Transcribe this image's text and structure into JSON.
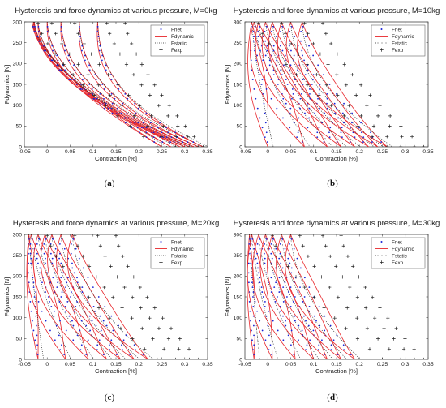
{
  "chart_data": [
    {
      "type": "line",
      "panel": "(a)",
      "panel_letter": "a",
      "title": "Hysteresis and force dynamics at various pressure, M=0kg",
      "xlabel": "Contraction [%]",
      "ylabel": "Fdynamics [N]",
      "xlim": [
        -0.05,
        0.35
      ],
      "ylim": [
        0,
        300
      ],
      "xticks": [
        "-0.05",
        "0",
        "0.05",
        "0.1",
        "0.15",
        "0.2",
        "0.25",
        "0.3",
        "0.35"
      ],
      "yticks": [
        "0",
        "50",
        "100",
        "150",
        "200",
        "250",
        "300"
      ],
      "legend_position": "top-right",
      "legend": [
        "Fnet",
        "Fdynamic",
        "Fstatic",
        "Fexp"
      ],
      "curves": [
        {
          "x0": -0.033,
          "x1": 0.25,
          "spread": 0.004,
          "shape": 0.35
        },
        {
          "x0": -0.03,
          "x1": 0.27,
          "spread": 0.004,
          "shape": 0.4
        },
        {
          "x0": -0.028,
          "x1": 0.29,
          "spread": 0.005,
          "shape": 0.5
        },
        {
          "x0": -0.02,
          "x1": 0.3,
          "spread": 0.005,
          "shape": 0.6
        },
        {
          "x0": 0.0,
          "x1": 0.31,
          "spread": 0.005,
          "shape": 0.7
        },
        {
          "x0": 0.03,
          "x1": 0.32,
          "spread": 0.005,
          "shape": 0.8
        },
        {
          "x0": 0.07,
          "x1": 0.33,
          "spread": 0.005,
          "shape": 0.9
        },
        {
          "x0": 0.11,
          "x1": 0.34,
          "spread": 0.005,
          "shape": 0.95
        }
      ],
      "fexp_sets": [
        {
          "x0": -0.02,
          "x1": 0.24
        },
        {
          "x0": 0.01,
          "x1": 0.28
        },
        {
          "x0": 0.06,
          "x1": 0.31
        },
        {
          "x0": 0.13,
          "x1": 0.33
        },
        {
          "x0": 0.17,
          "x1": 0.34
        }
      ]
    },
    {
      "type": "line",
      "panel": "(b)",
      "panel_letter": "b",
      "title": "Hysteresis and force dynamics at various pressure, M=10kg",
      "xlabel": "Contraction [%]",
      "ylabel": "Fdynamics [N]",
      "xlim": [
        -0.05,
        0.35
      ],
      "ylim": [
        0,
        300
      ],
      "xticks": [
        "-0.05",
        "0",
        "0.05",
        "0.1",
        "0.15",
        "0.2",
        "0.25",
        "0.3",
        "0.35"
      ],
      "yticks": [
        "0",
        "50",
        "100",
        "150",
        "200",
        "250",
        "300"
      ],
      "legend_position": "top-right",
      "legend": [
        "Fnet",
        "Fdynamic",
        "Fstatic",
        "Fexp"
      ],
      "curves": [
        {
          "x0": -0.035,
          "x1": 0.0,
          "spread": 0.018,
          "shape": 0.3
        },
        {
          "x0": -0.03,
          "x1": 0.08,
          "spread": 0.03,
          "shape": 0.35
        },
        {
          "x0": -0.02,
          "x1": 0.13,
          "spread": 0.03,
          "shape": 0.4
        },
        {
          "x0": -0.005,
          "x1": 0.16,
          "spread": 0.03,
          "shape": 0.45
        },
        {
          "x0": 0.01,
          "x1": 0.19,
          "spread": 0.03,
          "shape": 0.5
        },
        {
          "x0": 0.03,
          "x1": 0.22,
          "spread": 0.03,
          "shape": 0.55
        },
        {
          "x0": 0.05,
          "x1": 0.24,
          "spread": 0.03,
          "shape": 0.6
        },
        {
          "x0": 0.075,
          "x1": 0.26,
          "spread": 0.03,
          "shape": 0.65
        }
      ],
      "fexp_sets": [
        {
          "x0": -0.02,
          "x1": 0.26
        },
        {
          "x0": 0.03,
          "x1": 0.29
        },
        {
          "x0": 0.08,
          "x1": 0.32
        },
        {
          "x0": 0.12,
          "x1": 0.34
        }
      ]
    },
    {
      "type": "line",
      "panel": "(c)",
      "panel_letter": "c",
      "title": "Hysteresis and force dynamics at various pressure, M=20kg",
      "xlabel": "Contraction [%]",
      "ylabel": "Fdynamics [N]",
      "xlim": [
        -0.05,
        0.35
      ],
      "ylim": [
        0,
        300
      ],
      "xticks": [
        "-0.05",
        "0",
        "0.05",
        "0.1",
        "0.15",
        "0.2",
        "0.25",
        "0.3",
        "0.35"
      ],
      "yticks": [
        "0",
        "50",
        "100",
        "150",
        "200",
        "250",
        "300"
      ],
      "legend_position": "top-right",
      "legend": [
        "Fnet",
        "Fdynamic",
        "Fstatic",
        "Fexp"
      ],
      "curves": [
        {
          "x0": -0.04,
          "x1": -0.02,
          "spread": 0.01,
          "shape": 0.3
        },
        {
          "x0": -0.035,
          "x1": 0.04,
          "spread": 0.025,
          "shape": 0.35
        },
        {
          "x0": -0.02,
          "x1": 0.09,
          "spread": 0.03,
          "shape": 0.4
        },
        {
          "x0": -0.005,
          "x1": 0.13,
          "spread": 0.03,
          "shape": 0.45
        },
        {
          "x0": 0.01,
          "x1": 0.16,
          "spread": 0.03,
          "shape": 0.5
        },
        {
          "x0": 0.03,
          "x1": 0.19,
          "spread": 0.03,
          "shape": 0.55
        },
        {
          "x0": 0.055,
          "x1": 0.22,
          "spread": 0.03,
          "shape": 0.6
        }
      ],
      "fexp_sets": [
        {
          "x0": 0.0,
          "x1": 0.24
        },
        {
          "x0": 0.06,
          "x1": 0.28
        },
        {
          "x0": 0.11,
          "x1": 0.31
        },
        {
          "x0": 0.15,
          "x1": 0.33
        }
      ]
    },
    {
      "type": "line",
      "panel": "(d)",
      "panel_letter": "d",
      "title": "Hysteresis and force dynamics at various pressure, M=30kg",
      "xlabel": "Contraction [%]",
      "ylabel": "Fdynamics [N]",
      "xlim": [
        -0.05,
        0.35
      ],
      "ylim": [
        0,
        300
      ],
      "xticks": [
        "-0.05",
        "0",
        "0.05",
        "0.1",
        "0.15",
        "0.2",
        "0.25",
        "0.3",
        "0.35"
      ],
      "yticks": [
        "0",
        "50",
        "100",
        "150",
        "200",
        "250",
        "300"
      ],
      "legend_position": "top-right",
      "legend": [
        "Fnet",
        "Fdynamic",
        "Fstatic",
        "Fexp"
      ],
      "curves": [
        {
          "x0": -0.04,
          "x1": -0.03,
          "spread": 0.008,
          "shape": 0.3
        },
        {
          "x0": -0.035,
          "x1": 0.01,
          "spread": 0.02,
          "shape": 0.35
        },
        {
          "x0": -0.02,
          "x1": 0.06,
          "spread": 0.03,
          "shape": 0.4
        },
        {
          "x0": -0.005,
          "x1": 0.1,
          "spread": 0.03,
          "shape": 0.45
        },
        {
          "x0": 0.01,
          "x1": 0.13,
          "spread": 0.03,
          "shape": 0.5
        },
        {
          "x0": 0.03,
          "x1": 0.16,
          "spread": 0.03,
          "shape": 0.55
        },
        {
          "x0": 0.05,
          "x1": 0.19,
          "spread": 0.03,
          "shape": 0.6
        }
      ],
      "fexp_sets": [
        {
          "x0": 0.01,
          "x1": 0.25
        },
        {
          "x0": 0.07,
          "x1": 0.29
        },
        {
          "x0": 0.12,
          "x1": 0.32
        },
        {
          "x0": 0.16,
          "x1": 0.34
        }
      ]
    }
  ],
  "colors": {
    "fdynamic": "#e8262b",
    "fnet": "#1a23d6",
    "fstatic": "#222222",
    "fexp": "#222222",
    "axis": "#444444"
  }
}
